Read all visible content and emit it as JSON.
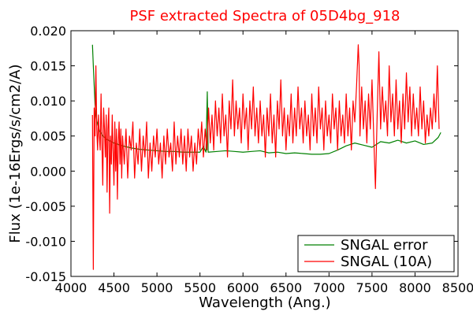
{
  "chart_data": {
    "type": "line",
    "title": "PSF extracted Spectra of 05D4bg_918",
    "title_color": "#ff0000",
    "xlabel": "Wavelength (Ang.)",
    "ylabel": "Flux (1e-16Ergs/s/cm2/A)",
    "xlim": [
      4000,
      8500
    ],
    "ylim": [
      -0.015,
      0.02
    ],
    "xticks": [
      4000,
      4500,
      5000,
      5500,
      6000,
      6500,
      7000,
      7500,
      8000,
      8500
    ],
    "xtick_labels": [
      "4000",
      "4500",
      "5000",
      "5500",
      "6000",
      "6500",
      "7000",
      "7500",
      "8000",
      "8500"
    ],
    "yticks": [
      -0.015,
      -0.01,
      -0.005,
      0.0,
      0.005,
      0.01,
      0.015,
      0.02
    ],
    "ytick_labels": [
      "-0.015",
      "-0.010",
      "-0.005",
      "0.000",
      "0.005",
      "0.010",
      "0.015",
      "0.020"
    ],
    "grid": false,
    "legend_position": "lower-right",
    "series": [
      {
        "name": "SNGAL error",
        "color": "#008000",
        "points": [
          [
            4250,
            0.018
          ],
          [
            4260,
            0.015
          ],
          [
            4280,
            0.0095
          ],
          [
            4300,
            0.0072
          ],
          [
            4330,
            0.0058
          ],
          [
            4370,
            0.005
          ],
          [
            4420,
            0.0045
          ],
          [
            4500,
            0.004
          ],
          [
            4600,
            0.0036
          ],
          [
            4700,
            0.0033
          ],
          [
            4800,
            0.0031
          ],
          [
            4900,
            0.003
          ],
          [
            5000,
            0.0029
          ],
          [
            5100,
            0.0028
          ],
          [
            5200,
            0.0028
          ],
          [
            5300,
            0.0027
          ],
          [
            5400,
            0.0027
          ],
          [
            5500,
            0.0027
          ],
          [
            5540,
            0.0035
          ],
          [
            5570,
            0.0027
          ],
          [
            5585,
            0.0113
          ],
          [
            5595,
            0.0027
          ],
          [
            5700,
            0.0028
          ],
          [
            5800,
            0.0029
          ],
          [
            5900,
            0.0028
          ],
          [
            6000,
            0.0027
          ],
          [
            6100,
            0.0028
          ],
          [
            6200,
            0.0029
          ],
          [
            6300,
            0.0026
          ],
          [
            6400,
            0.0027
          ],
          [
            6500,
            0.0025
          ],
          [
            6600,
            0.0026
          ],
          [
            6700,
            0.0025
          ],
          [
            6800,
            0.0024
          ],
          [
            6900,
            0.0024
          ],
          [
            7000,
            0.0025
          ],
          [
            7100,
            0.003
          ],
          [
            7200,
            0.0036
          ],
          [
            7300,
            0.004
          ],
          [
            7400,
            0.0037
          ],
          [
            7500,
            0.0034
          ],
          [
            7600,
            0.0042
          ],
          [
            7700,
            0.004
          ],
          [
            7800,
            0.0044
          ],
          [
            7900,
            0.004
          ],
          [
            8000,
            0.0043
          ],
          [
            8100,
            0.0038
          ],
          [
            8200,
            0.004
          ],
          [
            8270,
            0.0048
          ],
          [
            8300,
            0.0055
          ]
        ]
      },
      {
        "name": "SNGAL (10A)",
        "color": "#ff0000",
        "points": [
          [
            4250,
            0.008
          ],
          [
            4260,
            -0.014
          ],
          [
            4270,
            0.009
          ],
          [
            4280,
            0.005
          ],
          [
            4290,
            0.015
          ],
          [
            4300,
            0.006
          ],
          [
            4310,
            0.003
          ],
          [
            4320,
            0.008
          ],
          [
            4330,
            0.005
          ],
          [
            4340,
            0.003
          ],
          [
            4350,
            0.011
          ],
          [
            4360,
            0.004
          ],
          [
            4370,
            -0.002
          ],
          [
            4380,
            0.009
          ],
          [
            4390,
            0.006
          ],
          [
            4400,
            0.002
          ],
          [
            4410,
            0.008
          ],
          [
            4420,
            -0.003
          ],
          [
            4430,
            0.006
          ],
          [
            4440,
            0.009
          ],
          [
            4450,
            -0.006
          ],
          [
            4460,
            0.005
          ],
          [
            4470,
            0.001
          ],
          [
            4480,
            0.008
          ],
          [
            4490,
            0.003
          ],
          [
            4500,
            -0.002
          ],
          [
            4510,
            0.007
          ],
          [
            4520,
            0.0
          ],
          [
            4530,
            0.006
          ],
          [
            4540,
            -0.004
          ],
          [
            4550,
            0.004
          ],
          [
            4560,
            0.007
          ],
          [
            4570,
            0.001
          ],
          [
            4580,
            0.006
          ],
          [
            4590,
            -0.001
          ],
          [
            4600,
            0.005
          ],
          [
            4620,
            0.001
          ],
          [
            4640,
            0.006
          ],
          [
            4660,
            -0.001
          ],
          [
            4680,
            0.005
          ],
          [
            4700,
            0.003
          ],
          [
            4720,
            0.007
          ],
          [
            4740,
            -0.001
          ],
          [
            4760,
            0.004
          ],
          [
            4780,
            0.001
          ],
          [
            4800,
            0.006
          ],
          [
            4820,
            0.0
          ],
          [
            4840,
            0.005
          ],
          [
            4860,
            0.002
          ],
          [
            4880,
            0.007
          ],
          [
            4900,
            -0.001
          ],
          [
            4920,
            0.004
          ],
          [
            4940,
            0.0
          ],
          [
            4960,
            0.005
          ],
          [
            4980,
            0.002
          ],
          [
            5000,
            0.006
          ],
          [
            5020,
            0.001
          ],
          [
            5040,
            0.004
          ],
          [
            5060,
            -0.001
          ],
          [
            5080,
            0.005
          ],
          [
            5100,
            0.001
          ],
          [
            5120,
            0.006
          ],
          [
            5140,
            0.002
          ],
          [
            5160,
            0.004
          ],
          [
            5180,
            0.0
          ],
          [
            5200,
            0.007
          ],
          [
            5220,
            0.001
          ],
          [
            5240,
            0.005
          ],
          [
            5260,
            0.002
          ],
          [
            5280,
            0.006
          ],
          [
            5300,
            0.001
          ],
          [
            5320,
            0.005
          ],
          [
            5340,
            0.0
          ],
          [
            5360,
            0.006
          ],
          [
            5380,
            0.002
          ],
          [
            5400,
            0.005
          ],
          [
            5420,
            0.0
          ],
          [
            5440,
            0.004
          ],
          [
            5460,
            0.001
          ],
          [
            5480,
            0.006
          ],
          [
            5500,
            0.003
          ],
          [
            5520,
            0.007
          ],
          [
            5540,
            0.002
          ],
          [
            5560,
            0.006
          ],
          [
            5580,
            0.003
          ],
          [
            5600,
            0.009
          ],
          [
            5620,
            0.004
          ],
          [
            5640,
            0.008
          ],
          [
            5660,
            0.003
          ],
          [
            5680,
            0.01
          ],
          [
            5700,
            0.005
          ],
          [
            5720,
            0.009
          ],
          [
            5740,
            0.004
          ],
          [
            5760,
            0.011
          ],
          [
            5780,
            0.005
          ],
          [
            5800,
            0.008
          ],
          [
            5820,
            0.002
          ],
          [
            5840,
            0.01
          ],
          [
            5860,
            0.006
          ],
          [
            5880,
            0.013
          ],
          [
            5900,
            0.005
          ],
          [
            5920,
            0.01
          ],
          [
            5940,
            0.006
          ],
          [
            5960,
            0.009
          ],
          [
            5980,
            0.004
          ],
          [
            6000,
            0.011
          ],
          [
            6020,
            0.006
          ],
          [
            6040,
            0.009
          ],
          [
            6060,
            0.003
          ],
          [
            6080,
            0.01
          ],
          [
            6100,
            0.006
          ],
          [
            6120,
            0.012
          ],
          [
            6140,
            0.005
          ],
          [
            6160,
            0.009
          ],
          [
            6180,
            0.004
          ],
          [
            6200,
            0.01
          ],
          [
            6220,
            0.005
          ],
          [
            6240,
            0.008
          ],
          [
            6260,
            0.002
          ],
          [
            6280,
            0.009
          ],
          [
            6300,
            0.005
          ],
          [
            6320,
            0.011
          ],
          [
            6340,
            0.004
          ],
          [
            6360,
            0.008
          ],
          [
            6380,
            0.002
          ],
          [
            6400,
            0.01
          ],
          [
            6420,
            0.006
          ],
          [
            6440,
            0.013
          ],
          [
            6460,
            0.005
          ],
          [
            6480,
            0.009
          ],
          [
            6500,
            0.003
          ],
          [
            6520,
            0.008
          ],
          [
            6540,
            0.005
          ],
          [
            6560,
            0.011
          ],
          [
            6580,
            0.004
          ],
          [
            6600,
            0.009
          ],
          [
            6620,
            0.005
          ],
          [
            6640,
            0.012
          ],
          [
            6660,
            0.006
          ],
          [
            6680,
            0.009
          ],
          [
            6700,
            0.004
          ],
          [
            6720,
            0.01
          ],
          [
            6740,
            0.005
          ],
          [
            6760,
            0.008
          ],
          [
            6780,
            0.003
          ],
          [
            6800,
            0.011
          ],
          [
            6820,
            0.005
          ],
          [
            6840,
            0.009
          ],
          [
            6860,
            0.004
          ],
          [
            6880,
            0.012
          ],
          [
            6900,
            0.006
          ],
          [
            6920,
            0.009
          ],
          [
            6940,
            0.003
          ],
          [
            6960,
            0.01
          ],
          [
            6980,
            0.005
          ],
          [
            7000,
            0.008
          ],
          [
            7020,
            0.004
          ],
          [
            7040,
            0.011
          ],
          [
            7060,
            0.006
          ],
          [
            7080,
            0.009
          ],
          [
            7100,
            0.003
          ],
          [
            7120,
            0.01
          ],
          [
            7140,
            0.005
          ],
          [
            7160,
            0.008
          ],
          [
            7180,
            0.004
          ],
          [
            7200,
            0.011
          ],
          [
            7220,
            0.005
          ],
          [
            7240,
            0.009
          ],
          [
            7260,
            0.003
          ],
          [
            7280,
            0.01
          ],
          [
            7300,
            0.007
          ],
          [
            7320,
            0.012
          ],
          [
            7340,
            0.018
          ],
          [
            7350,
            0.015
          ],
          [
            7360,
            0.005
          ],
          [
            7380,
            0.012
          ],
          [
            7400,
            0.006
          ],
          [
            7420,
            0.01
          ],
          [
            7440,
            0.004
          ],
          [
            7460,
            0.011
          ],
          [
            7480,
            0.006
          ],
          [
            7500,
            0.013
          ],
          [
            7520,
            0.005
          ],
          [
            7540,
            -0.0025
          ],
          [
            7560,
            0.008
          ],
          [
            7580,
            0.017
          ],
          [
            7600,
            0.006
          ],
          [
            7620,
            0.012
          ],
          [
            7640,
            0.007
          ],
          [
            7660,
            0.01
          ],
          [
            7680,
            0.005
          ],
          [
            7700,
            0.015
          ],
          [
            7720,
            0.007
          ],
          [
            7740,
            0.011
          ],
          [
            7760,
            0.005
          ],
          [
            7780,
            0.013
          ],
          [
            7800,
            0.006
          ],
          [
            7820,
            0.01
          ],
          [
            7840,
            0.004
          ],
          [
            7860,
            0.011
          ],
          [
            7880,
            0.006
          ],
          [
            7900,
            0.014
          ],
          [
            7920,
            0.007
          ],
          [
            7940,
            0.012
          ],
          [
            7960,
            0.005
          ],
          [
            7980,
            0.011
          ],
          [
            8000,
            0.006
          ],
          [
            8020,
            0.009
          ],
          [
            8040,
            0.005
          ],
          [
            8060,
            0.012
          ],
          [
            8080,
            0.006
          ],
          [
            8100,
            0.01
          ],
          [
            8120,
            0.004
          ],
          [
            8140,
            0.008
          ],
          [
            8160,
            0.005
          ],
          [
            8180,
            0.009
          ],
          [
            8200,
            0.006
          ],
          [
            8220,
            0.011
          ],
          [
            8240,
            0.007
          ],
          [
            8260,
            0.015
          ],
          [
            8280,
            0.006
          ]
        ]
      }
    ]
  }
}
